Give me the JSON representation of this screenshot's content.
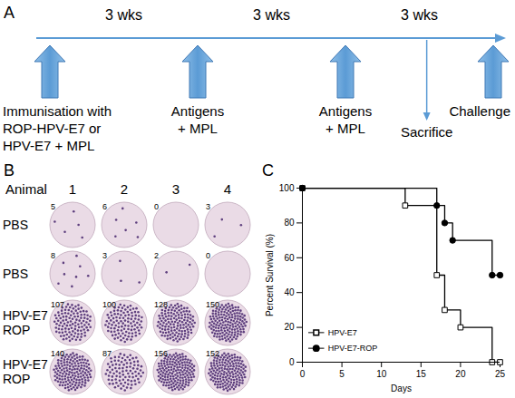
{
  "panel_letters": [
    "A",
    "B",
    "C"
  ],
  "timeline": {
    "intervals": [
      "3 wks",
      "3 wks",
      "3 wks"
    ],
    "events": [
      "Immunisation with ROP-HPV-E7 or HPV-E7 + MPL",
      "Antigens + MPL",
      "Antigens + MPL",
      "Challenge"
    ],
    "sacrifice": "Sacrifice"
  },
  "wells": {
    "column_header": "Animal",
    "columns": [
      "1",
      "2",
      "3",
      "4"
    ],
    "rows": [
      {
        "label": "PBS",
        "counts": [
          5,
          6,
          0,
          3
        ]
      },
      {
        "label": "PBS",
        "counts": [
          8,
          3,
          2,
          0
        ]
      },
      {
        "label": "HPV-E7 ROP",
        "counts": [
          107,
          100,
          128,
          150
        ]
      },
      {
        "label": "HPV-E7 ROP",
        "counts": [
          140,
          87,
          156,
          152
        ]
      }
    ]
  },
  "chart_data": {
    "type": "step",
    "x_label": "Days",
    "y_label": "Percent Survival (%)",
    "xlim": [
      0,
      25
    ],
    "ylim": [
      0,
      100
    ],
    "xticks": [
      0,
      5,
      10,
      15,
      20,
      25
    ],
    "yticks": [
      0,
      20,
      40,
      60,
      80,
      100
    ],
    "legend": "lower left",
    "series": [
      {
        "name": "HPV-E7",
        "color": "#000000",
        "marker": "square",
        "x": [
          0,
          13,
          17,
          18,
          20,
          24,
          25
        ],
        "values": [
          100,
          90,
          50,
          30,
          20,
          0,
          0
        ]
      },
      {
        "name": "HPV-E7-ROP",
        "color": "#000000",
        "marker": "circle",
        "x": [
          0,
          17,
          18,
          19,
          24,
          25
        ],
        "values": [
          100,
          90,
          80,
          70,
          50,
          50
        ]
      }
    ]
  }
}
